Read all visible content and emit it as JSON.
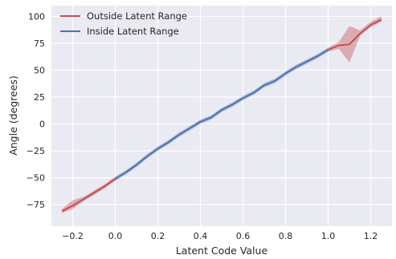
{
  "chart_data": {
    "type": "line",
    "xlabel": "Latent Code Value",
    "ylabel": "Angle (degrees)",
    "xlim": [
      -0.3,
      1.3
    ],
    "ylim": [
      -95,
      110
    ],
    "x_ticks": [
      -0.2,
      0.0,
      0.2,
      0.4,
      0.6,
      0.8,
      1.0,
      1.2
    ],
    "x_tick_labels": [
      "−0.2",
      "0.0",
      "0.2",
      "0.4",
      "0.6",
      "0.8",
      "1.0",
      "1.2"
    ],
    "y_ticks": [
      -75,
      -50,
      -25,
      0,
      25,
      50,
      75,
      100
    ],
    "y_tick_labels": [
      "−75",
      "−50",
      "−25",
      "0",
      "25",
      "50",
      "75",
      "100"
    ],
    "grid": true,
    "legend_position": "top-left",
    "series": [
      {
        "name": "Outside Latent Range",
        "color": "#c44e52",
        "x": [
          -0.25,
          -0.2,
          -0.15,
          -0.1,
          -0.05,
          0.0,
          1.0,
          1.05,
          1.1,
          1.15,
          1.2,
          1.25
        ],
        "y": [
          -81,
          -76,
          -70,
          -64,
          -58,
          -51,
          69,
          73,
          74,
          84,
          92,
          97
        ],
        "lower": [
          -83,
          -79,
          -72,
          -66,
          -60,
          -53,
          67,
          70,
          57,
          82,
          90,
          95
        ],
        "upper": [
          -79,
          -71,
          -68,
          -62,
          -56,
          -49,
          71,
          76,
          91,
          87,
          95,
          100
        ]
      },
      {
        "name": "Inside Latent Range",
        "color": "#4c72b0",
        "x": [
          0.0,
          0.05,
          0.1,
          0.15,
          0.2,
          0.25,
          0.3,
          0.35,
          0.4,
          0.45,
          0.5,
          0.55,
          0.6,
          0.65,
          0.7,
          0.75,
          0.8,
          0.85,
          0.9,
          0.95,
          1.0
        ],
        "y": [
          -51,
          -45,
          -38,
          -30,
          -23,
          -17,
          -10,
          -4,
          2,
          6,
          13,
          18,
          24,
          29,
          36,
          40,
          47,
          53,
          58,
          63,
          69
        ],
        "lower": [
          -53,
          -47,
          -40,
          -32,
          -25,
          -19,
          -12,
          -6,
          0,
          4,
          11,
          16,
          22,
          27,
          34,
          38,
          45,
          51,
          56,
          61,
          67
        ],
        "upper": [
          -49,
          -43,
          -36,
          -28,
          -21,
          -15,
          -8,
          -2,
          4,
          8,
          15,
          20,
          26,
          31,
          38,
          42,
          49,
          55,
          60,
          65,
          71
        ]
      }
    ]
  }
}
